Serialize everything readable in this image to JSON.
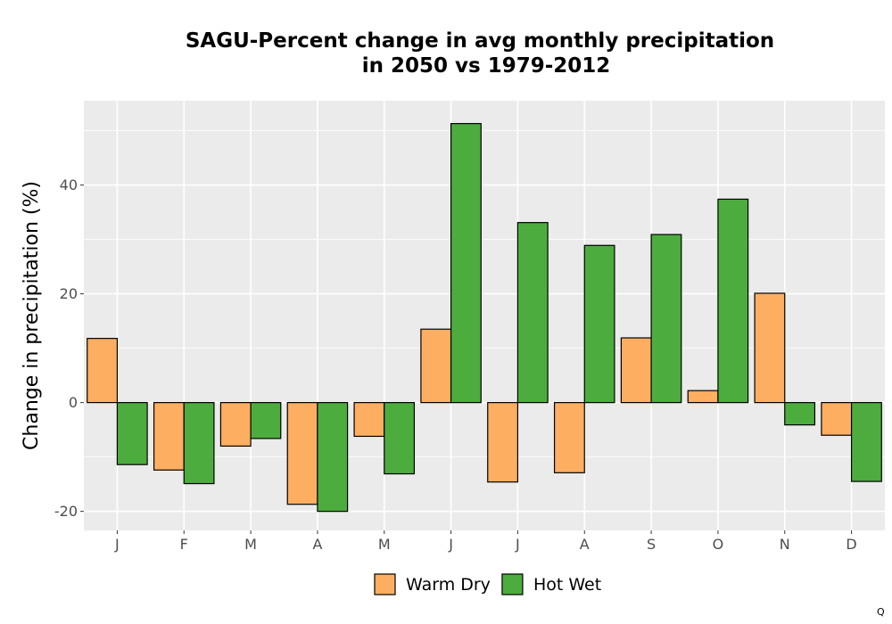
{
  "chart_data": {
    "type": "bar",
    "title_lines": [
      "SAGU-Percent change in avg monthly precipitation",
      "in 2050 vs 1979-2012"
    ],
    "xlabel": "",
    "ylabel": "Change in precipitation (%)",
    "categories": [
      "J",
      "F",
      "M",
      "A",
      "M",
      "J",
      "J",
      "A",
      "S",
      "O",
      "N",
      "D"
    ],
    "series": [
      {
        "name": "Warm Dry",
        "color": "#FDAE61",
        "values": [
          11.8,
          -12.4,
          -8.0,
          -18.7,
          -6.2,
          13.5,
          -14.6,
          -12.9,
          11.9,
          2.2,
          20.1,
          -6.0
        ]
      },
      {
        "name": "Hot Wet",
        "color": "#4DAC3E",
        "values": [
          -11.4,
          -14.9,
          -6.6,
          -20.0,
          -13.1,
          51.3,
          33.1,
          28.9,
          30.9,
          37.4,
          -4.1,
          -14.5
        ]
      }
    ],
    "ylim": [
      -23.5,
      55.5
    ],
    "yticks": [
      -20,
      0,
      20,
      40
    ],
    "grid": true,
    "panel_background": "#EBEBEB",
    "legend_position": "bottom",
    "corner_mark": "Q"
  }
}
